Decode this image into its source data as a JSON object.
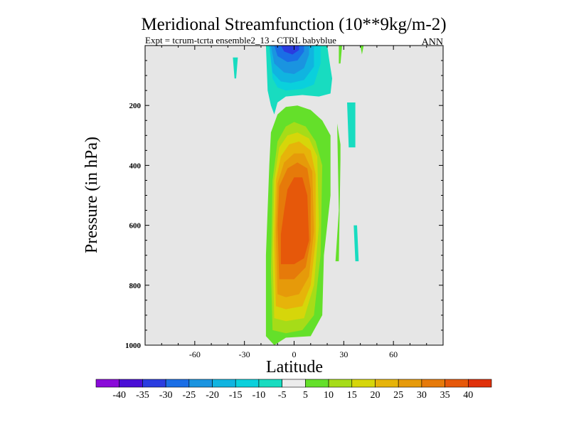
{
  "chart_data": {
    "type": "contour",
    "title": "Meridional Streamfunction (10**9kg/m-2)",
    "subtitle": "Expt = tcrum-tcrta ensemble2_13 - CTRL babyblue",
    "season_label": "ANN",
    "xlabel": "Latitude",
    "ylabel": "Pressure (in hPa)",
    "xlim": [
      -90,
      90
    ],
    "ylim": [
      1000,
      0
    ],
    "x_ticks": [
      -60,
      -30,
      0,
      30,
      60
    ],
    "x_tick_labels": [
      "-60",
      "-30",
      "0",
      "30",
      "60"
    ],
    "y_ticks": [
      200,
      400,
      600,
      800,
      1000
    ],
    "y_tick_labels": [
      "200",
      "400",
      "600",
      "800",
      "1000"
    ],
    "background_color": "#e6e6e6",
    "colorbar": {
      "bins": [
        {
          "color": "#8a0ad9"
        },
        {
          "color": "#4a0fd6"
        },
        {
          "color": "#2a3ce0"
        },
        {
          "color": "#1a6ee6"
        },
        {
          "color": "#1a94e0"
        },
        {
          "color": "#10b4e0"
        },
        {
          "color": "#0ad0dc"
        },
        {
          "color": "#18dcc0"
        },
        {
          "color": "#ececec"
        },
        {
          "color": "#64e02a"
        },
        {
          "color": "#a6dc18"
        },
        {
          "color": "#d6d60a"
        },
        {
          "color": "#e6b40a"
        },
        {
          "color": "#e69a0a"
        },
        {
          "color": "#e67a0a"
        },
        {
          "color": "#e6580a"
        },
        {
          "color": "#e0300a"
        }
      ],
      "tick_labels": [
        "-40",
        "-35",
        "-30",
        "-25",
        "-20",
        "-15",
        "-10",
        "-5",
        "5",
        "10",
        "15",
        "20",
        "25",
        "30",
        "35",
        "40"
      ]
    },
    "regions": [
      {
        "level": 10,
        "color": "#64e02a",
        "polygon": [
          [
            -12,
            1000
          ],
          [
            -17,
            970
          ],
          [
            -17,
            700
          ],
          [
            -15,
            400
          ],
          [
            -14,
            290
          ],
          [
            -10,
            230
          ],
          [
            -5,
            205
          ],
          [
            2,
            200
          ],
          [
            10,
            215
          ],
          [
            17,
            250
          ],
          [
            22,
            300
          ],
          [
            22,
            500
          ],
          [
            18,
            700
          ],
          [
            17,
            900
          ],
          [
            10,
            970
          ],
          [
            -5,
            975
          ],
          [
            -12,
            1000
          ]
        ]
      },
      {
        "level": 15,
        "color": "#a6dc18",
        "polygon": [
          [
            -13,
            950
          ],
          [
            -14,
            750
          ],
          [
            -13,
            450
          ],
          [
            -10,
            320
          ],
          [
            -5,
            270
          ],
          [
            0,
            255
          ],
          [
            7,
            270
          ],
          [
            13,
            320
          ],
          [
            17,
            400
          ],
          [
            16,
            700
          ],
          [
            12,
            900
          ],
          [
            5,
            950
          ],
          [
            -5,
            960
          ],
          [
            -13,
            950
          ]
        ]
      },
      {
        "level": 20,
        "color": "#d6d60a",
        "polygon": [
          [
            -12,
            910
          ],
          [
            -13,
            700
          ],
          [
            -12,
            450
          ],
          [
            -9,
            340
          ],
          [
            -4,
            300
          ],
          [
            2,
            290
          ],
          [
            9,
            310
          ],
          [
            14,
            370
          ],
          [
            15,
            600
          ],
          [
            12,
            800
          ],
          [
            6,
            910
          ],
          [
            -5,
            920
          ],
          [
            -12,
            910
          ]
        ]
      },
      {
        "level": 25,
        "color": "#e6b40a",
        "polygon": [
          [
            -11,
            870
          ],
          [
            -12,
            650
          ],
          [
            -11,
            450
          ],
          [
            -8,
            370
          ],
          [
            -3,
            330
          ],
          [
            3,
            320
          ],
          [
            10,
            350
          ],
          [
            13,
            430
          ],
          [
            13,
            650
          ],
          [
            10,
            800
          ],
          [
            5,
            870
          ],
          [
            -5,
            880
          ],
          [
            -11,
            870
          ]
        ]
      },
      {
        "level": 30,
        "color": "#e69a0a",
        "polygon": [
          [
            -10,
            830
          ],
          [
            -11,
            620
          ],
          [
            -10,
            460
          ],
          [
            -6,
            390
          ],
          [
            0,
            360
          ],
          [
            6,
            360
          ],
          [
            11,
            420
          ],
          [
            12,
            620
          ],
          [
            9,
            770
          ],
          [
            3,
            830
          ],
          [
            -5,
            840
          ],
          [
            -10,
            830
          ]
        ]
      },
      {
        "level": 35,
        "color": "#e67a0a",
        "polygon": [
          [
            -9,
            780
          ],
          [
            -10,
            600
          ],
          [
            -9,
            470
          ],
          [
            -4,
            410
          ],
          [
            2,
            390
          ],
          [
            8,
            410
          ],
          [
            10,
            480
          ],
          [
            10,
            650
          ],
          [
            7,
            740
          ],
          [
            0,
            780
          ],
          [
            -9,
            780
          ]
        ]
      },
      {
        "level": 40,
        "color": "#e6580a",
        "polygon": [
          [
            -8,
            730
          ],
          [
            -8,
            630
          ],
          [
            -6,
            550
          ],
          [
            -4,
            480
          ],
          [
            0,
            440
          ],
          [
            5,
            440
          ],
          [
            8,
            500
          ],
          [
            9,
            650
          ],
          [
            6,
            710
          ],
          [
            0,
            730
          ],
          [
            -8,
            730
          ]
        ]
      },
      {
        "level": 10,
        "color": "#64e02a",
        "polygon": [
          [
            26,
            260
          ],
          [
            27,
            550
          ],
          [
            25,
            720
          ],
          [
            27,
            720
          ],
          [
            28,
            380
          ],
          [
            28,
            330
          ],
          [
            26,
            260
          ]
        ]
      },
      {
        "level": 10,
        "color": "#64e02a",
        "polygon": [
          [
            27,
            0
          ],
          [
            27,
            60
          ],
          [
            28,
            60
          ],
          [
            29,
            0
          ],
          [
            27,
            0
          ]
        ]
      },
      {
        "level": 10,
        "color": "#64e02a",
        "polygon": [
          [
            40,
            0
          ],
          [
            41,
            30
          ],
          [
            42,
            0
          ],
          [
            40,
            0
          ]
        ]
      },
      {
        "level": -5,
        "color": "#18dcc0",
        "polygon": [
          [
            -37,
            40
          ],
          [
            -36,
            110
          ],
          [
            -35,
            110
          ],
          [
            -34,
            40
          ],
          [
            -37,
            40
          ]
        ]
      },
      {
        "level": -5,
        "color": "#18dcc0",
        "polygon": [
          [
            -17,
            0
          ],
          [
            -16,
            150
          ],
          [
            -14,
            200
          ],
          [
            -12,
            230
          ],
          [
            -10,
            190
          ],
          [
            -5,
            170
          ],
          [
            5,
            165
          ],
          [
            15,
            170
          ],
          [
            22,
            160
          ],
          [
            23,
            110
          ],
          [
            21,
            40
          ],
          [
            20,
            0
          ],
          [
            -17,
            0
          ]
        ]
      },
      {
        "level": -5,
        "color": "#18dcc0",
        "polygon": [
          [
            32,
            190
          ],
          [
            33,
            340
          ],
          [
            37,
            340
          ],
          [
            37,
            190
          ],
          [
            32,
            190
          ]
        ]
      },
      {
        "level": -5,
        "color": "#18dcc0",
        "polygon": [
          [
            36,
            600
          ],
          [
            37,
            720
          ],
          [
            39,
            720
          ],
          [
            38,
            600
          ],
          [
            36,
            600
          ]
        ]
      },
      {
        "level": -10,
        "color": "#0ad0dc",
        "polygon": [
          [
            -15,
            0
          ],
          [
            -13,
            110
          ],
          [
            -10,
            140
          ],
          [
            -5,
            150
          ],
          [
            5,
            145
          ],
          [
            12,
            130
          ],
          [
            16,
            60
          ],
          [
            16,
            0
          ],
          [
            -15,
            0
          ]
        ]
      },
      {
        "level": -15,
        "color": "#10b4e0",
        "polygon": [
          [
            -15,
            0
          ],
          [
            -13,
            90
          ],
          [
            -8,
            120
          ],
          [
            -2,
            125
          ],
          [
            6,
            115
          ],
          [
            12,
            70
          ],
          [
            12,
            0
          ],
          [
            -15,
            0
          ]
        ]
      },
      {
        "level": -20,
        "color": "#1a94e0",
        "polygon": [
          [
            -14,
            0
          ],
          [
            -12,
            60
          ],
          [
            -6,
            90
          ],
          [
            0,
            95
          ],
          [
            6,
            75
          ],
          [
            9,
            30
          ],
          [
            9,
            0
          ],
          [
            -14,
            0
          ]
        ]
      },
      {
        "level": -25,
        "color": "#1a6ee6",
        "polygon": [
          [
            -12,
            0
          ],
          [
            -10,
            35
          ],
          [
            -4,
            55
          ],
          [
            2,
            50
          ],
          [
            6,
            20
          ],
          [
            6,
            0
          ],
          [
            -12,
            0
          ]
        ]
      },
      {
        "level": -30,
        "color": "#2a3ce0",
        "polygon": [
          [
            -8,
            0
          ],
          [
            -6,
            20
          ],
          [
            -1,
            30
          ],
          [
            3,
            15
          ],
          [
            3,
            0
          ],
          [
            -8,
            0
          ]
        ]
      }
    ]
  }
}
